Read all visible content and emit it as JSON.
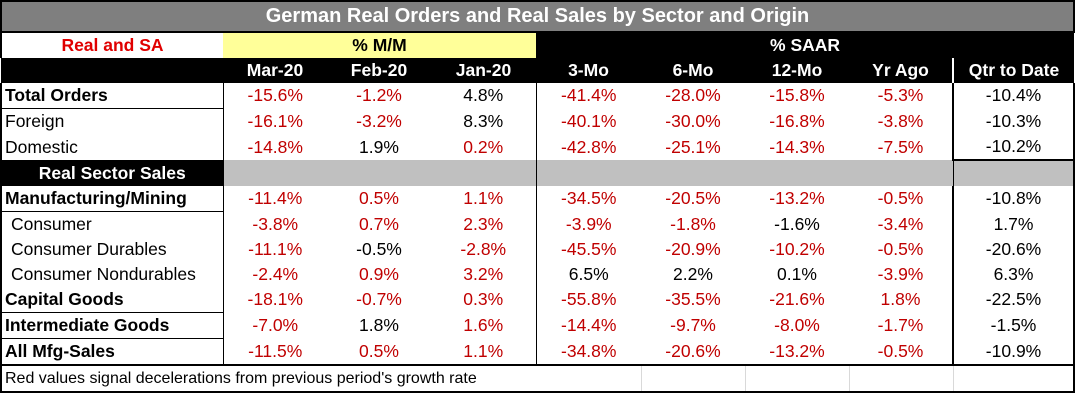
{
  "title": "German Real Orders and Real Sales by Sector and Origin",
  "corner_label": "Real and SA",
  "group_mm": "% M/M",
  "group_saar": "% SAAR",
  "columns": [
    "Mar-20",
    "Feb-20",
    "Jan-20",
    "3-Mo",
    "6-Mo",
    "12-Mo",
    "Yr Ago",
    "Qtr to Date"
  ],
  "section_label": "Real Sector Sales",
  "rows_orders": [
    {
      "label": "Total Orders",
      "bold": true,
      "values": [
        "-15.6%",
        "-1.2%",
        "4.8%",
        "-41.4%",
        "-28.0%",
        "-15.8%",
        "-5.3%",
        "-10.4%"
      ],
      "red": [
        1,
        1,
        0,
        1,
        1,
        1,
        1,
        0
      ]
    },
    {
      "label": "Foreign",
      "bold": false,
      "values": [
        "-16.1%",
        "-3.2%",
        "8.3%",
        "-40.1%",
        "-30.0%",
        "-16.8%",
        "-3.8%",
        "-10.3%"
      ],
      "red": [
        1,
        1,
        0,
        1,
        1,
        1,
        1,
        0
      ]
    },
    {
      "label": "Domestic",
      "bold": false,
      "values": [
        "-14.8%",
        "1.9%",
        "0.2%",
        "-42.8%",
        "-25.1%",
        "-14.3%",
        "-7.5%",
        "-10.2%"
      ],
      "red": [
        1,
        0,
        1,
        1,
        1,
        1,
        1,
        0
      ]
    }
  ],
  "rows_sales": [
    {
      "label": "Manufacturing/Mining",
      "bold": true,
      "indent": false,
      "values": [
        "-11.4%",
        "0.5%",
        "1.1%",
        "-34.5%",
        "-20.5%",
        "-13.2%",
        "-0.5%",
        "-10.8%"
      ],
      "red": [
        1,
        1,
        1,
        1,
        1,
        1,
        1,
        0
      ]
    },
    {
      "label": "Consumer",
      "bold": false,
      "indent": true,
      "values": [
        "-3.8%",
        "0.7%",
        "2.3%",
        "-3.9%",
        "-1.8%",
        "-1.6%",
        "-3.4%",
        "1.7%"
      ],
      "red": [
        1,
        1,
        1,
        1,
        1,
        0,
        1,
        0
      ]
    },
    {
      "label": "Consumer Durables",
      "bold": false,
      "indent": true,
      "values": [
        "-11.1%",
        "-0.5%",
        "-2.8%",
        "-45.5%",
        "-20.9%",
        "-10.2%",
        "-0.5%",
        "-20.6%"
      ],
      "red": [
        1,
        0,
        1,
        1,
        1,
        1,
        1,
        0
      ]
    },
    {
      "label": "Consumer Nondurables",
      "bold": false,
      "indent": true,
      "values": [
        "-2.4%",
        "0.9%",
        "3.2%",
        "6.5%",
        "2.2%",
        "0.1%",
        "-3.9%",
        "6.3%"
      ],
      "red": [
        1,
        1,
        1,
        0,
        0,
        0,
        1,
        0
      ]
    },
    {
      "label": "Capital Goods",
      "bold": true,
      "indent": false,
      "values": [
        "-18.1%",
        "-0.7%",
        "0.3%",
        "-55.8%",
        "-35.5%",
        "-21.6%",
        "1.8%",
        "-22.5%"
      ],
      "red": [
        1,
        1,
        1,
        1,
        1,
        1,
        1,
        0
      ]
    },
    {
      "label": "Intermediate Goods",
      "bold": true,
      "indent": false,
      "values": [
        "-7.0%",
        "1.8%",
        "1.6%",
        "-14.4%",
        "-9.7%",
        "-8.0%",
        "-1.7%",
        "-1.5%"
      ],
      "red": [
        1,
        0,
        1,
        1,
        1,
        1,
        1,
        0
      ]
    },
    {
      "label": "All Mfg-Sales",
      "bold": true,
      "indent": false,
      "values": [
        "-11.5%",
        "0.5%",
        "1.1%",
        "-34.8%",
        "-20.6%",
        "-13.2%",
        "-0.5%",
        "-10.9%"
      ],
      "red": [
        1,
        1,
        1,
        1,
        1,
        1,
        1,
        0
      ]
    }
  ],
  "footnote": "Red values signal decelerations from previous period's growth rate"
}
